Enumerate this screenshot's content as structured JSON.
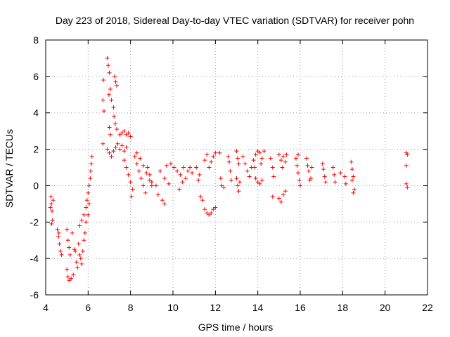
{
  "chart_data": {
    "type": "scatter",
    "title": "Day 223 of 2018, Sidereal Day-to-day VTEC variation (SDTVAR) for receiver pohn",
    "xlabel": "GPS time / hours",
    "ylabel": "SDTVAR / TECUs",
    "xlim": [
      4,
      22
    ],
    "ylim": [
      -6,
      8
    ],
    "xticks": [
      "4",
      "6",
      "8",
      "10",
      "12",
      "14",
      "16",
      "18",
      "20",
      "22"
    ],
    "yticks": [
      "-6",
      "-4",
      "-2",
      "0",
      "2",
      "4",
      "6",
      "8"
    ],
    "grid": true,
    "marker": "+",
    "color": "#ff0000",
    "series": [
      {
        "name": "SDTVAR",
        "points": [
          [
            4.25,
            -0.6
          ],
          [
            4.27,
            -1.0
          ],
          [
            4.3,
            -1.4
          ],
          [
            4.32,
            -1.9
          ],
          [
            4.28,
            -2.1
          ],
          [
            4.35,
            -0.8
          ],
          [
            4.22,
            -1.2
          ],
          [
            4.55,
            -2.4
          ],
          [
            4.6,
            -2.8
          ],
          [
            4.65,
            -3.2
          ],
          [
            4.7,
            -3.6
          ],
          [
            4.75,
            -3.8
          ],
          [
            4.62,
            -2.6
          ],
          [
            5.0,
            -2.4
          ],
          [
            5.05,
            -3.0
          ],
          [
            5.1,
            -3.4
          ],
          [
            5.15,
            -3.8
          ],
          [
            5.0,
            -4.6
          ],
          [
            5.05,
            -5.0
          ],
          [
            5.1,
            -5.2
          ],
          [
            5.2,
            -5.1
          ],
          [
            5.3,
            -4.9
          ],
          [
            5.35,
            -3.5
          ],
          [
            5.4,
            -3.6
          ],
          [
            5.45,
            -4.2
          ],
          [
            5.5,
            -4.5
          ],
          [
            5.25,
            -2.6
          ],
          [
            5.55,
            -3.2
          ],
          [
            5.6,
            -3.8
          ],
          [
            5.65,
            -4.0
          ],
          [
            5.7,
            -4.3
          ],
          [
            5.75,
            -3.6
          ],
          [
            5.8,
            -3.0
          ],
          [
            5.85,
            -2.6
          ],
          [
            5.6,
            -2.2
          ],
          [
            5.7,
            -1.9
          ],
          [
            5.8,
            -1.6
          ],
          [
            5.9,
            -1.2
          ],
          [
            5.95,
            -0.8
          ],
          [
            6.0,
            -0.4
          ],
          [
            6.05,
            0.0
          ],
          [
            6.1,
            0.4
          ],
          [
            6.12,
            0.8
          ],
          [
            6.15,
            1.2
          ],
          [
            6.18,
            1.6
          ],
          [
            5.9,
            -2.0
          ],
          [
            6.0,
            -1.6
          ],
          [
            6.05,
            -1.0
          ],
          [
            6.7,
            2.3
          ],
          [
            6.7,
            4.7
          ],
          [
            6.72,
            5.8
          ],
          [
            6.75,
            4.1
          ],
          [
            6.9,
            7.0
          ],
          [
            6.95,
            6.6
          ],
          [
            7.0,
            6.2
          ],
          [
            7.05,
            5.3
          ],
          [
            6.98,
            5.0
          ],
          [
            7.1,
            4.7
          ],
          [
            7.2,
            4.3
          ],
          [
            7.25,
            6.0
          ],
          [
            7.3,
            5.7
          ],
          [
            7.35,
            5.5
          ],
          [
            7.22,
            3.8
          ],
          [
            7.28,
            3.4
          ],
          [
            7.35,
            3.1
          ],
          [
            7.0,
            3.2
          ],
          [
            7.05,
            2.8
          ],
          [
            6.9,
            2.0
          ],
          [
            7.0,
            1.8
          ],
          [
            7.1,
            1.6
          ],
          [
            7.2,
            1.9
          ],
          [
            7.3,
            2.1
          ],
          [
            7.4,
            2.3
          ],
          [
            7.5,
            2.0
          ],
          [
            7.6,
            2.2
          ],
          [
            7.7,
            1.9
          ],
          [
            7.8,
            2.1
          ],
          [
            7.6,
            2.9
          ],
          [
            7.7,
            3.0
          ],
          [
            7.8,
            2.8
          ],
          [
            7.9,
            2.9
          ],
          [
            8.0,
            2.7
          ],
          [
            7.5,
            2.8
          ],
          [
            7.7,
            1.4
          ],
          [
            7.8,
            1.0
          ],
          [
            7.9,
            0.6
          ],
          [
            8.0,
            0.2
          ],
          [
            8.1,
            -0.2
          ],
          [
            8.05,
            -0.6
          ],
          [
            8.2,
            1.6
          ],
          [
            8.3,
            1.2
          ],
          [
            8.4,
            0.8
          ],
          [
            8.5,
            0.4
          ],
          [
            8.6,
            0.0
          ],
          [
            8.7,
            -0.4
          ],
          [
            8.3,
            1.8
          ],
          [
            8.45,
            1.5
          ],
          [
            8.6,
            1.1
          ],
          [
            8.75,
            0.7
          ],
          [
            8.9,
            0.3
          ],
          [
            9.0,
            0.0
          ],
          [
            8.8,
            1.0
          ],
          [
            8.9,
            0.6
          ],
          [
            9.0,
            0.2
          ],
          [
            9.2,
            0.0
          ],
          [
            9.3,
            -0.5
          ],
          [
            9.5,
            -0.8
          ],
          [
            9.6,
            -1.0
          ],
          [
            9.4,
            0.8
          ],
          [
            9.6,
            0.4
          ],
          [
            9.8,
            0.1
          ],
          [
            9.7,
            1.1
          ],
          [
            9.9,
            1.2
          ],
          [
            10.05,
            1.0
          ],
          [
            10.2,
            0.8
          ],
          [
            10.35,
            0.6
          ],
          [
            10.5,
            1.0
          ],
          [
            10.6,
            0.4
          ],
          [
            10.3,
            -0.2
          ],
          [
            10.45,
            0.2
          ],
          [
            10.7,
            0.8
          ],
          [
            10.8,
            1.0
          ],
          [
            10.9,
            0.7
          ],
          [
            11.1,
            1.0
          ],
          [
            11.2,
            0.3
          ],
          [
            11.3,
            -0.6
          ],
          [
            11.4,
            -0.8
          ],
          [
            11.25,
            0.6
          ],
          [
            11.5,
            1.4
          ],
          [
            11.6,
            1.7
          ],
          [
            11.7,
            1.0
          ],
          [
            11.8,
            1.3
          ],
          [
            11.9,
            1.6
          ],
          [
            12.0,
            1.8
          ],
          [
            11.5,
            -1.3
          ],
          [
            11.6,
            -1.5
          ],
          [
            11.7,
            -1.6
          ],
          [
            11.8,
            -1.5
          ],
          [
            11.9,
            -1.3
          ],
          [
            12.0,
            -1.2
          ],
          [
            12.2,
            1.8
          ],
          [
            12.25,
            0.4
          ],
          [
            12.3,
            0.0
          ],
          [
            12.4,
            -0.1
          ],
          [
            12.6,
            1.6
          ],
          [
            12.65,
            1.3
          ],
          [
            12.7,
            0.8
          ],
          [
            12.75,
            0.3
          ],
          [
            13.0,
            1.9
          ],
          [
            13.05,
            1.5
          ],
          [
            13.1,
            1.2
          ],
          [
            13.0,
            0.4
          ],
          [
            13.05,
            0.0
          ],
          [
            13.1,
            -0.3
          ],
          [
            13.15,
            0.2
          ],
          [
            13.3,
            1.6
          ],
          [
            13.4,
            1.2
          ],
          [
            13.5,
            0.8
          ],
          [
            13.6,
            0.5
          ],
          [
            13.7,
            1.0
          ],
          [
            13.8,
            1.4
          ],
          [
            13.9,
            1.7
          ],
          [
            14.0,
            1.9
          ],
          [
            14.1,
            1.8
          ],
          [
            14.2,
            1.5
          ],
          [
            14.3,
            1.9
          ],
          [
            13.9,
            0.4
          ],
          [
            14.0,
            0.2
          ],
          [
            14.1,
            0.1
          ],
          [
            14.2,
            0.3
          ],
          [
            13.85,
            1.0
          ],
          [
            14.15,
            1.2
          ],
          [
            14.6,
            1.5
          ],
          [
            14.7,
            1.0
          ],
          [
            14.75,
            0.5
          ],
          [
            14.7,
            -0.6
          ],
          [
            15.0,
            1.7
          ],
          [
            15.1,
            1.4
          ],
          [
            15.15,
            1.0
          ],
          [
            15.2,
            1.6
          ],
          [
            15.3,
            1.3
          ],
          [
            15.35,
            1.7
          ],
          [
            15.0,
            -0.7
          ],
          [
            15.1,
            -0.9
          ],
          [
            15.2,
            -0.5
          ],
          [
            15.3,
            -0.3
          ],
          [
            15.8,
            1.5
          ],
          [
            15.85,
            1.1
          ],
          [
            15.9,
            0.7
          ],
          [
            15.95,
            0.3
          ],
          [
            16.0,
            0.0
          ],
          [
            15.9,
            1.7
          ],
          [
            16.3,
            1.5
          ],
          [
            16.35,
            1.1
          ],
          [
            16.4,
            0.8
          ],
          [
            16.45,
            0.3
          ],
          [
            16.5,
            0.4
          ],
          [
            16.55,
            1.0
          ],
          [
            17.05,
            1.2
          ],
          [
            17.1,
            0.9
          ],
          [
            17.15,
            0.5
          ],
          [
            17.2,
            0.2
          ],
          [
            17.55,
            1.0
          ],
          [
            17.6,
            0.6
          ],
          [
            17.65,
            0.2
          ],
          [
            17.9,
            0.7
          ],
          [
            18.1,
            0.5
          ],
          [
            18.15,
            0.1
          ],
          [
            18.4,
            1.3
          ],
          [
            18.45,
            0.9
          ],
          [
            18.5,
            0.5
          ],
          [
            18.55,
            -0.2
          ],
          [
            18.5,
            -0.4
          ],
          [
            18.45,
            0.3
          ],
          [
            21.0,
            1.8
          ],
          [
            21.05,
            1.7
          ],
          [
            21.0,
            1.1
          ],
          [
            21.0,
            0.1
          ],
          [
            21.05,
            -0.1
          ]
        ]
      }
    ]
  }
}
